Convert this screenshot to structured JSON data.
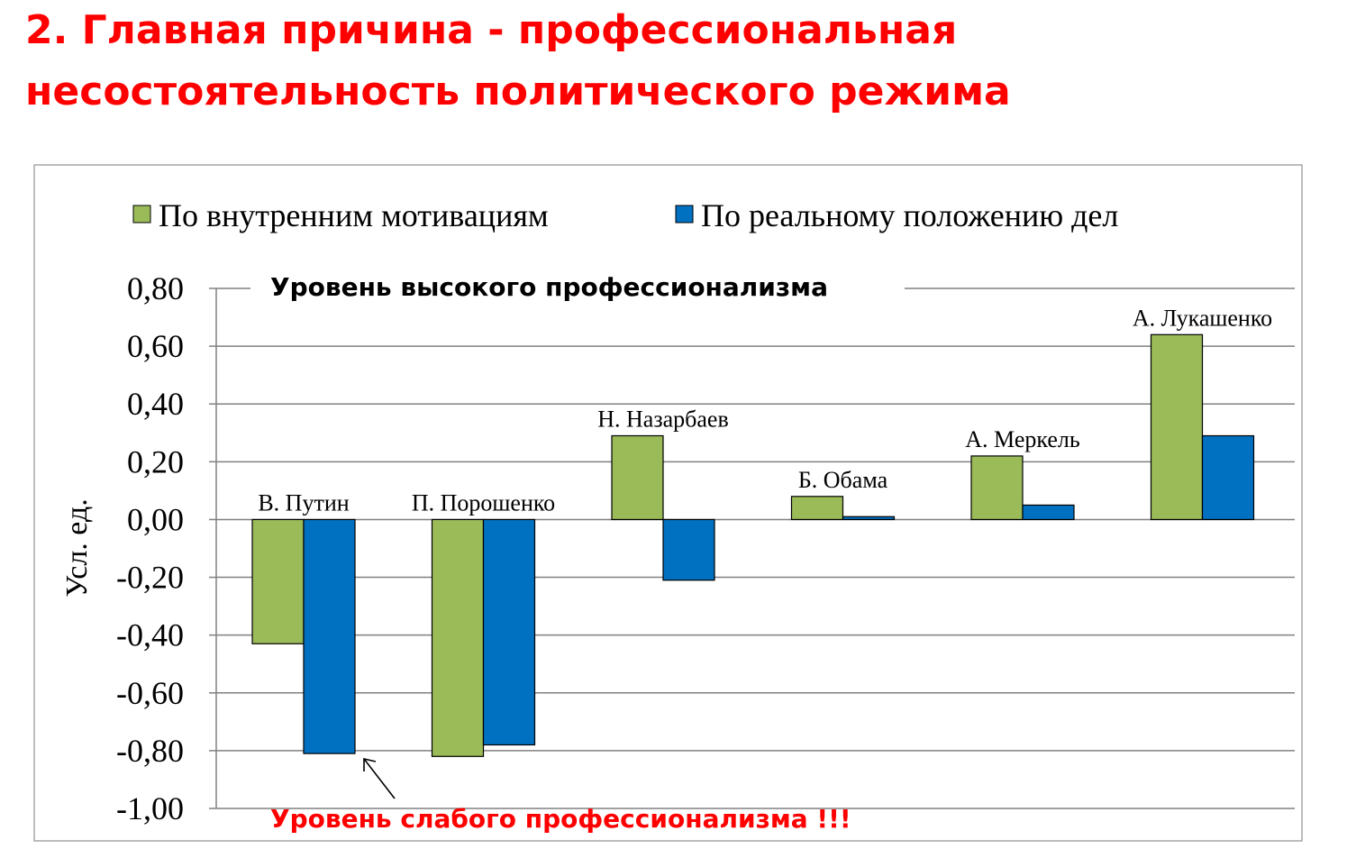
{
  "page": {
    "title_line1": "2. Главная причина - профессиональная",
    "title_line2": "несостоятельность политического режима"
  },
  "chart_data": {
    "type": "bar",
    "categories": [
      "В. Путин",
      "П. Порошенко",
      "Н. Назарбаев",
      "Б. Обама",
      "А. Меркель",
      "А. Лукашенко"
    ],
    "series": [
      {
        "name": "По внутренним мотивациям",
        "color": "#9bbb59",
        "values": [
          -0.43,
          -0.82,
          0.29,
          0.08,
          0.22,
          0.64
        ]
      },
      {
        "name": "По реальному положению дел",
        "color": "#0070c0",
        "values": [
          -0.81,
          -0.78,
          -0.21,
          0.01,
          0.05,
          0.29
        ]
      }
    ],
    "ylabel": "Усл. ед.",
    "ylim": [
      -1.0,
      0.8
    ],
    "yticks": [
      "0,80",
      "0,60",
      "0,40",
      "0,20",
      "0,00",
      "-0,20",
      "-0,40",
      "-0,60",
      "-0,80",
      "-1,00"
    ],
    "grid": true,
    "legend": "top",
    "annotations": {
      "top": "Уровень высокого профессионализма",
      "bottom": "Уровень слабого профессионализма !!!"
    },
    "annotation_color": "#ff0000"
  }
}
